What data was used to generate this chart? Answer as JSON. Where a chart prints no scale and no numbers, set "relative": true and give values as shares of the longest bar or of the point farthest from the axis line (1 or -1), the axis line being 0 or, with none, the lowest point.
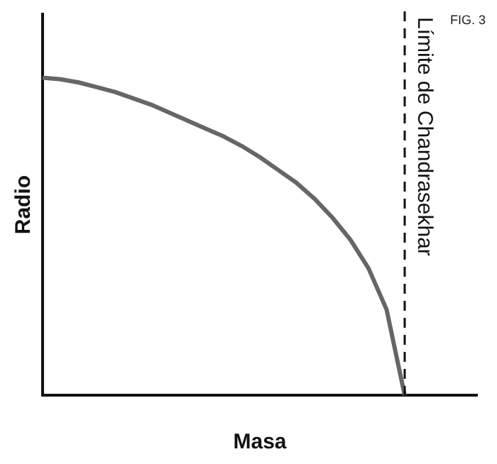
{
  "chart_data": {
    "type": "line",
    "relative": true,
    "xlabel": "Masa",
    "ylabel": "Radio",
    "annotations": [
      "FIG. 3"
    ],
    "grid": false,
    "legend": false,
    "marker": "none",
    "categories": [
      null,
      null,
      null,
      null,
      null,
      null,
      null,
      null,
      null,
      null,
      null,
      null,
      null,
      null,
      null,
      null,
      null,
      null,
      null,
      null,
      null,
      null,
      null,
      null,
      null
    ],
    "series": [
      {
        "color": "#666666",
        "values": [
          1,
          0.995,
          0.985,
          0.97,
          0.955,
          0.935,
          0.915,
          0.89,
          0.865,
          0.84,
          0.815,
          0.785,
          0.75,
          0.71,
          0.67,
          0.62,
          0.56,
          0.49,
          0.4,
          0.27,
          0,
          null,
          null,
          null,
          null
        ]
      }
    ],
    "ref_lines": [
      {
        "axis": "x",
        "label": "Límite de Chandrasekhar",
        "line_style": "dashed",
        "color": "#111111"
      }
    ]
  }
}
